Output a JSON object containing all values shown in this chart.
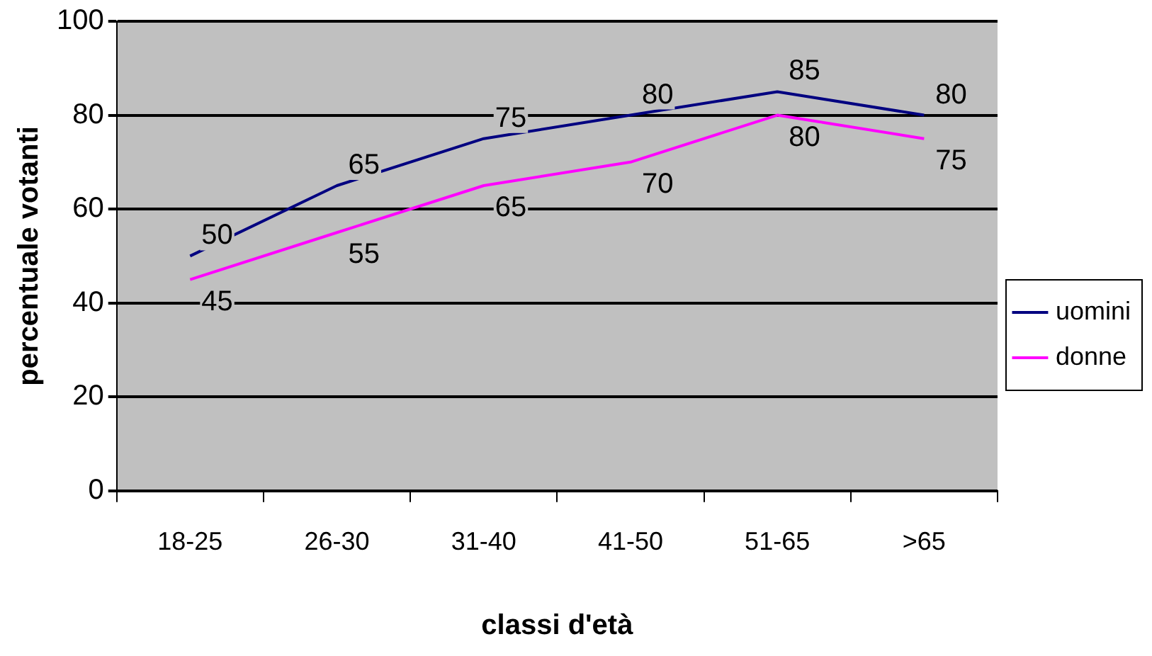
{
  "chart_data": {
    "type": "line",
    "xlabel": "classi d'età",
    "ylabel": "percentuale votanti",
    "categories": [
      "18-25",
      "26-30",
      "31-40",
      "41-50",
      "51-65",
      ">65"
    ],
    "series": [
      {
        "name": "uomini",
        "color": "#000080",
        "values": [
          50,
          65,
          75,
          80,
          85,
          80
        ]
      },
      {
        "name": "donne",
        "color": "#ff00ff",
        "values": [
          45,
          55,
          65,
          70,
          80,
          75
        ]
      }
    ],
    "ylim": [
      0,
      100
    ],
    "yticks": [
      0,
      20,
      40,
      60,
      80,
      100
    ],
    "grid": "y",
    "legend": "right",
    "marker": "none",
    "line_style": "solid",
    "data_labels": true
  }
}
